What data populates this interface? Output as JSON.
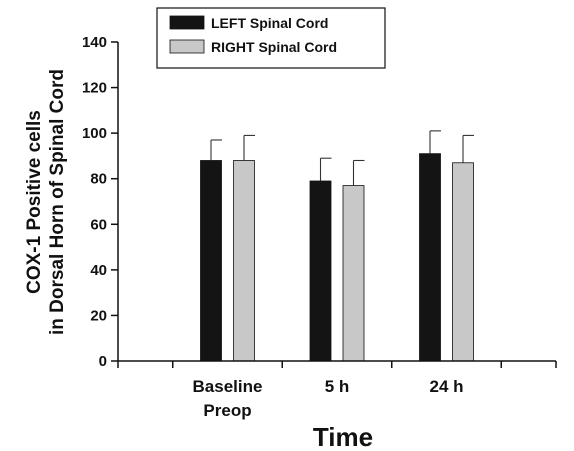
{
  "chart_data": {
    "type": "bar",
    "categories": [
      [
        "Baseline",
        "Preop"
      ],
      [
        "5 h"
      ],
      [
        "24 h"
      ]
    ],
    "series": [
      {
        "name": "LEFT Spinal Cord",
        "values": [
          88,
          79,
          91
        ],
        "errors": [
          9,
          10,
          10
        ],
        "color": "#141414"
      },
      {
        "name": "RIGHT Spinal Cord",
        "values": [
          88,
          77,
          87
        ],
        "errors": [
          11,
          11,
          12
        ],
        "color": "#c8c8c8"
      }
    ],
    "xlabel": "Time",
    "ylabel": [
      "COX-1 Positive cells",
      "in Dorsal Horn of Spinal Cord"
    ],
    "ylim": [
      0,
      140
    ],
    "yticks": [
      0,
      20,
      40,
      60,
      80,
      100,
      120,
      140
    ],
    "legend": "top-center",
    "grid": false
  }
}
